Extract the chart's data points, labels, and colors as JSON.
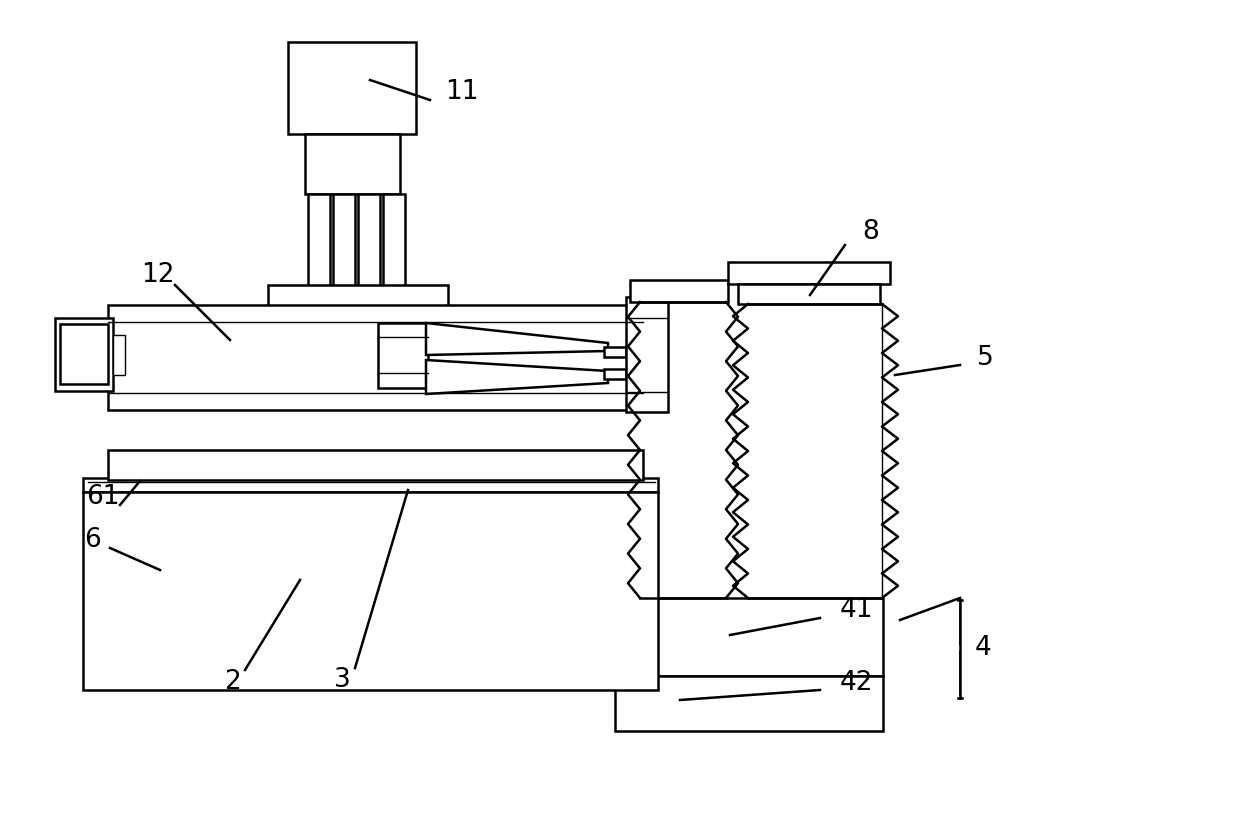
{
  "bg_color": "#ffffff",
  "line_color": "#000000",
  "lw": 1.8,
  "lw_thin": 1.0,
  "fig_width": 12.4,
  "fig_height": 8.16,
  "dpi": 100
}
